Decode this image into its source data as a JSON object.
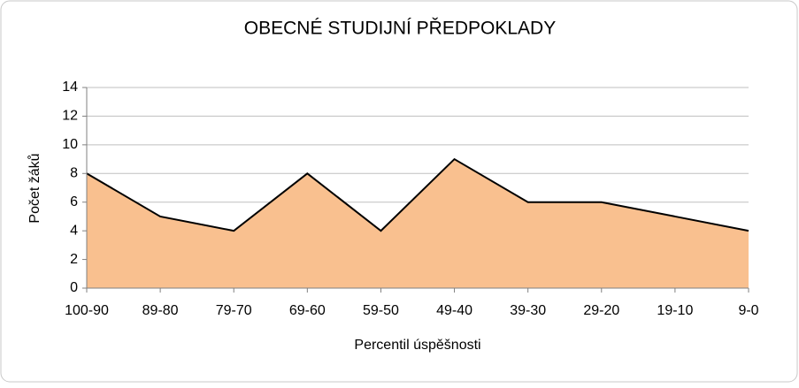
{
  "chart_data": {
    "type": "area",
    "title": "OBECNÉ STUDIJNÍ PŘEDPOKLADY",
    "y_label": "Počet žáků",
    "x_label": "Percentil úspěšnosti",
    "categories": [
      "100-90",
      "89-80",
      "79-70",
      "69-60",
      "59-50",
      "49-40",
      "39-30",
      "29-20",
      "19-10",
      "9-0"
    ],
    "values": [
      8,
      5,
      4,
      8,
      4,
      9,
      6,
      6,
      5,
      4
    ],
    "color": "#f9c08f",
    "ylim": [
      0,
      14
    ],
    "yticks": [
      0,
      2,
      4,
      6,
      8,
      10,
      12,
      14
    ],
    "grid": true
  }
}
